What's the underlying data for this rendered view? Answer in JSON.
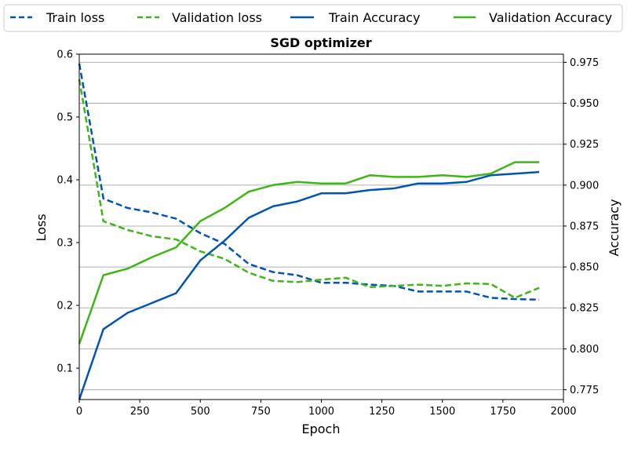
{
  "chart_data": {
    "type": "line",
    "title": "SGD optimizer",
    "xlabel": "Epoch",
    "ylabel_left": "Loss",
    "ylabel_right": "Accuracy",
    "xlim": [
      0,
      2000
    ],
    "ylim_left": [
      0.05,
      0.6
    ],
    "ylim_right": [
      0.769,
      0.98
    ],
    "x_ticks": [
      0,
      250,
      500,
      750,
      1000,
      1250,
      1500,
      1750,
      2000
    ],
    "x_tick_labels": [
      "0",
      "250",
      "500",
      "750",
      "1000",
      "1250",
      "1500",
      "1750",
      "2000"
    ],
    "y_left_ticks": [
      0.1,
      0.2,
      0.3,
      0.4,
      0.5,
      0.6
    ],
    "y_left_tick_labels": [
      "0.1",
      "0.2",
      "0.3",
      "0.4",
      "0.5",
      "0.6"
    ],
    "y_right_ticks": [
      0.775,
      0.8,
      0.825,
      0.85,
      0.875,
      0.9,
      0.925,
      0.95,
      0.975
    ],
    "y_right_tick_labels": [
      "0.775",
      "0.800",
      "0.825",
      "0.850",
      "0.875",
      "0.900",
      "0.925",
      "0.950",
      "0.975"
    ],
    "grid": "horizontal, right axis",
    "legend_placement": "top, outside plot",
    "x": [
      0,
      100,
      200,
      300,
      400,
      500,
      600,
      700,
      800,
      900,
      1000,
      1100,
      1200,
      1300,
      1400,
      1500,
      1600,
      1700,
      1800,
      1900
    ],
    "series": [
      {
        "name": "Train loss",
        "axis": "left",
        "style": "dashed",
        "color": "#0055b3",
        "values": [
          0.585,
          0.37,
          0.355,
          0.348,
          0.338,
          0.315,
          0.298,
          0.266,
          0.253,
          0.248,
          0.236,
          0.236,
          0.233,
          0.231,
          0.222,
          0.222,
          0.222,
          0.212,
          0.21,
          0.209
        ]
      },
      {
        "name": "Validation loss",
        "axis": "left",
        "style": "dashed",
        "color": "#3fb618",
        "values": [
          0.56,
          0.334,
          0.32,
          0.31,
          0.305,
          0.286,
          0.274,
          0.252,
          0.239,
          0.237,
          0.241,
          0.244,
          0.229,
          0.231,
          0.233,
          0.231,
          0.235,
          0.234,
          0.212,
          0.228
        ]
      },
      {
        "name": "Train Accuracy",
        "axis": "right",
        "style": "solid",
        "color": "#0055b3",
        "values": [
          0.768,
          0.812,
          0.822,
          0.828,
          0.834,
          0.854,
          0.866,
          0.88,
          0.887,
          0.89,
          0.895,
          0.895,
          0.897,
          0.898,
          0.901,
          0.901,
          0.902,
          0.906,
          0.907,
          0.908
        ]
      },
      {
        "name": "Validation Accuracy",
        "axis": "right",
        "style": "solid",
        "color": "#3fb618",
        "values": [
          0.803,
          0.845,
          0.849,
          0.856,
          0.862,
          0.878,
          0.886,
          0.896,
          0.9,
          0.902,
          0.901,
          0.901,
          0.906,
          0.905,
          0.905,
          0.906,
          0.905,
          0.907,
          0.914,
          0.914
        ]
      }
    ]
  }
}
